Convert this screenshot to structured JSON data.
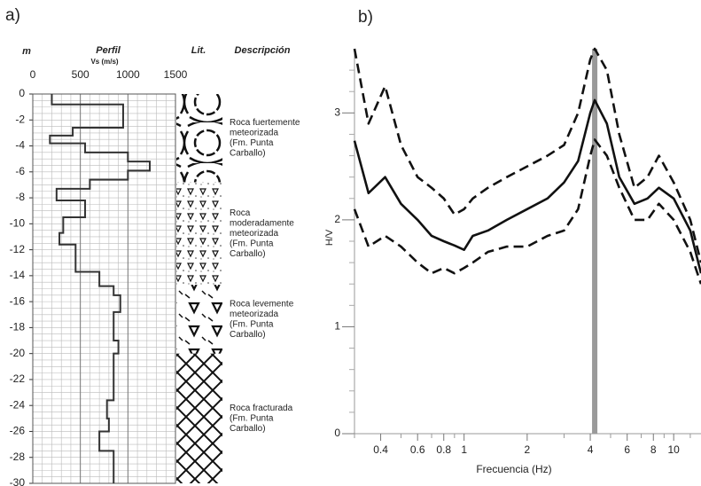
{
  "chart_data": [
    {
      "type": "profile",
      "label": "a)",
      "title": "Perfil",
      "x_label": "Vs (m/s)",
      "y_label": "m",
      "lithology_label": "Lit.",
      "description_label": "Descripción",
      "xlim": [
        0,
        1500
      ],
      "xticks": [
        0,
        500,
        1000,
        1500
      ],
      "ylim": [
        -30,
        0
      ],
      "yticks": [
        0,
        -2,
        -4,
        -6,
        -8,
        -10,
        -12,
        -14,
        -16,
        -18,
        -20,
        -22,
        -24,
        -26,
        -28,
        -30
      ],
      "grid": true,
      "color": "#333333",
      "series": [
        {
          "x": [
            200,
            200,
            950,
            950,
            420,
            420,
            180,
            180,
            550,
            550,
            1000,
            1000,
            1230,
            1230,
            1000,
            1000,
            600,
            600,
            250,
            250,
            550,
            550,
            320,
            320,
            280,
            280,
            450,
            450,
            700,
            700,
            850,
            850,
            920,
            920,
            850,
            850,
            900,
            900,
            850,
            850,
            780,
            780,
            800,
            800,
            700,
            700,
            850,
            850
          ],
          "y": [
            0,
            -0.8,
            -0.8,
            -2.6,
            -2.6,
            -3.2,
            -3.2,
            -3.8,
            -3.8,
            -4.5,
            -4.5,
            -5.2,
            -5.2,
            -5.9,
            -5.9,
            -6.6,
            -6.6,
            -7.3,
            -7.3,
            -8.2,
            -8.2,
            -9.5,
            -9.5,
            -10.7,
            -10.7,
            -11.6,
            -11.6,
            -13.7,
            -13.7,
            -14.8,
            -14.8,
            -15.5,
            -15.5,
            -16.8,
            -16.8,
            -19,
            -19,
            -20,
            -20,
            -23.6,
            -23.6,
            -25,
            -25,
            -26,
            -26,
            -27.5,
            -27.5,
            -30
          ]
        }
      ],
      "units": [
        {
          "top": 0,
          "bottom": -6.8,
          "description": [
            "Roca fuertemente",
            "meteorizada",
            "(Fm. Punta",
            "Carballo)"
          ]
        },
        {
          "top": -6.8,
          "bottom": -14.7,
          "description": [
            "Roca",
            "moderadamente",
            "meteorizada",
            "(Fm. Punta",
            "Carballo)"
          ]
        },
        {
          "top": -14.7,
          "bottom": -20,
          "description": [
            "Roca levemente",
            "meteorizada",
            "(Fm. Punta",
            "Carballo)"
          ]
        },
        {
          "top": -20,
          "bottom": -30,
          "description": [
            "Roca fracturada",
            "(Fm. Punta",
            "Carballo)"
          ]
        }
      ]
    },
    {
      "type": "line",
      "label": "b)",
      "x_label": "Frecuencia (Hz)",
      "y_label": "H/V",
      "log_x": true,
      "xlim": [
        0.3,
        13.5
      ],
      "xticks": [
        0.4,
        0.6,
        0.8,
        1,
        2,
        4,
        6,
        8,
        10
      ],
      "xminorticks": [
        0.3,
        0.5,
        0.7,
        0.9,
        3,
        5,
        7,
        9,
        12
      ],
      "ylim": [
        0,
        3.6
      ],
      "yticks": [
        0,
        1,
        2,
        3
      ],
      "yminorticks": [
        0.2,
        0.4,
        0.6,
        0.8,
        1.2,
        1.4,
        1.6,
        1.8,
        2.2,
        2.4,
        2.6,
        2.8,
        3.2,
        3.4
      ],
      "peak_frequency": 4.2,
      "peak_color": "#9a9a9a",
      "x": [
        0.3,
        0.35,
        0.42,
        0.5,
        0.6,
        0.7,
        0.8,
        0.9,
        1,
        1.1,
        1.3,
        1.6,
        2,
        2.5,
        3,
        3.5,
        4,
        4.2,
        4.8,
        5.5,
        6.5,
        7.5,
        8.5,
        10,
        12,
        13.5
      ],
      "series": [
        {
          "color": "#111111",
          "dashed": false,
          "values": [
            2.74,
            2.25,
            2.4,
            2.15,
            2.0,
            1.85,
            1.8,
            1.76,
            1.72,
            1.85,
            1.9,
            2.0,
            2.1,
            2.2,
            2.35,
            2.55,
            3.0,
            3.12,
            2.9,
            2.4,
            2.15,
            2.2,
            2.3,
            2.2,
            1.9,
            1.5
          ]
        },
        {
          "color": "#111111",
          "dashed": true,
          "values": [
            3.6,
            2.9,
            3.25,
            2.7,
            2.4,
            2.3,
            2.2,
            2.05,
            2.1,
            2.2,
            2.3,
            2.4,
            2.5,
            2.6,
            2.7,
            3.0,
            3.5,
            3.6,
            3.4,
            2.8,
            2.3,
            2.4,
            2.6,
            2.35,
            2.0,
            1.6
          ]
        },
        {
          "color": "#111111",
          "dashed": true,
          "values": [
            2.1,
            1.75,
            1.85,
            1.75,
            1.6,
            1.5,
            1.55,
            1.5,
            1.55,
            1.6,
            1.7,
            1.75,
            1.75,
            1.85,
            1.9,
            2.1,
            2.6,
            2.75,
            2.6,
            2.3,
            2.0,
            2.0,
            2.15,
            2.0,
            1.7,
            1.4
          ]
        }
      ]
    }
  ]
}
